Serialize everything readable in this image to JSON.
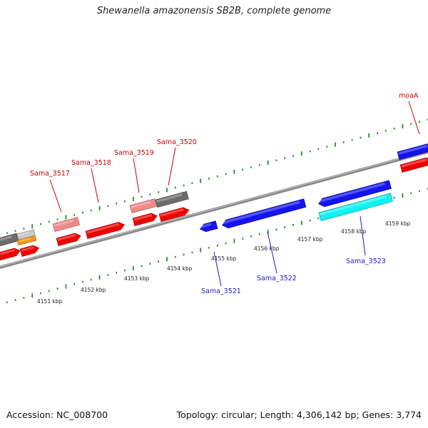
{
  "title": "Shewanella amazonensis SB2B, complete genome",
  "footer": {
    "accession": "Accession: NC_008700",
    "summary": "Topology: circular; Length: 4,306,142 bp; Genes: 3,774"
  },
  "colors": {
    "forward_label": "#cc0000",
    "reverse_label": "#1a1acc",
    "backbone": "#888888",
    "tick": "#2a8a2a"
  },
  "tick_labels": [
    {
      "label": "4151 kbp",
      "kbp": 4151
    },
    {
      "label": "4152 kbp",
      "kbp": 4152
    },
    {
      "label": "4153 kbp",
      "kbp": 4153
    },
    {
      "label": "4154 kbp",
      "kbp": 4154
    },
    {
      "label": "4155 kbp",
      "kbp": 4155
    },
    {
      "label": "4156 kbp",
      "kbp": 4156
    },
    {
      "label": "4157 kbp",
      "kbp": 4157
    },
    {
      "label": "4158 kbp",
      "kbp": 4158
    },
    {
      "label": "4159 kbp",
      "kbp": 4159
    }
  ],
  "gene_labels": [
    {
      "name": "Sama_3517",
      "strand": "forward"
    },
    {
      "name": "Sama_3518",
      "strand": "forward"
    },
    {
      "name": "Sama_3519",
      "strand": "forward"
    },
    {
      "name": "Sama_3520",
      "strand": "forward"
    },
    {
      "name": "moaA",
      "strand": "forward"
    },
    {
      "name": "Sama_3521",
      "strand": "reverse"
    },
    {
      "name": "Sama_3522",
      "strand": "reverse"
    },
    {
      "name": "Sama_3523",
      "strand": "reverse"
    }
  ]
}
